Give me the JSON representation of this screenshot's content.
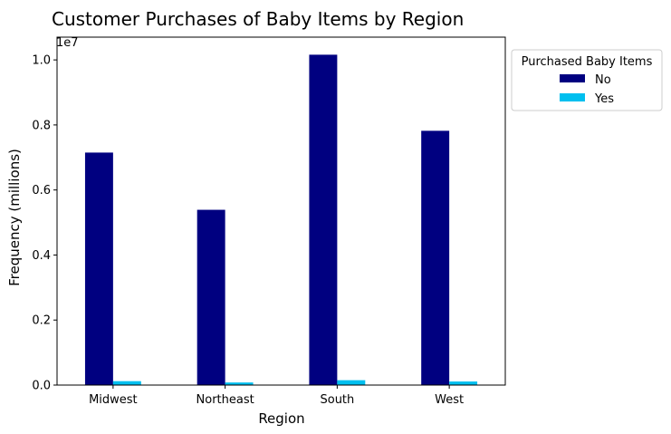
{
  "chart_data": {
    "type": "bar",
    "title": "Customer Purchases of Baby Items by Region",
    "xlabel": "Region",
    "ylabel": "Frequency (millions)",
    "y_offset_label": "1e7",
    "categories": [
      "Midwest",
      "Northeast",
      "South",
      "West"
    ],
    "series": [
      {
        "name": "No",
        "color": "#000080",
        "values": [
          7150000,
          5390000,
          10160000,
          7820000
        ]
      },
      {
        "name": "Yes",
        "color": "#00BFEF",
        "values": [
          120000,
          80000,
          150000,
          110000
        ]
      }
    ],
    "ylim": [
      0,
      10700000
    ],
    "yticks": [
      0,
      2000000,
      4000000,
      6000000,
      8000000,
      10000000
    ],
    "ytick_labels": [
      "0.0",
      "0.2",
      "0.4",
      "0.6",
      "0.8",
      "1.0"
    ],
    "legend": {
      "title": "Purchased Baby Items",
      "placement": "outside-top-right"
    },
    "grid": false
  }
}
